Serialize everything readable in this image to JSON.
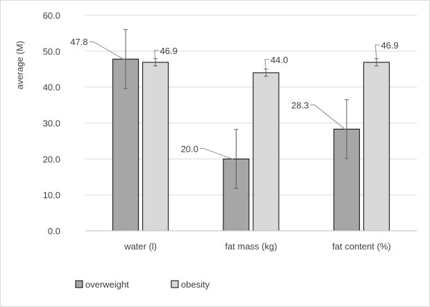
{
  "chart_data": {
    "type": "bar",
    "title": "",
    "xlabel": "",
    "ylabel": "average  (M)",
    "ylim": [
      0,
      60
    ],
    "yticks": [
      "0.0",
      "10.0",
      "20.0",
      "30.0",
      "40.0",
      "50.0",
      "60.0"
    ],
    "categories": [
      "water (l)",
      "fat mass (kg)",
      "fat content (%)"
    ],
    "series": [
      {
        "name": "overweight",
        "values": [
          47.8,
          20.0,
          28.3
        ],
        "labels": [
          "47.8",
          "20.0",
          "28.3"
        ],
        "error": [
          8.2,
          8.2,
          8.2
        ],
        "color": "#a6a6a6"
      },
      {
        "name": "obesity",
        "values": [
          46.9,
          44.0,
          46.9
        ],
        "labels": [
          "46.9",
          "44.0",
          "46.9"
        ],
        "error": [
          1.0,
          1.0,
          1.0
        ],
        "color": "#d9d9d9"
      }
    ],
    "grid": true,
    "legend": "bottom-left",
    "colors": {
      "gridline": "#d9d9d9",
      "axis": "#bfbfbf",
      "bar_border": "#000000",
      "text": "#404040"
    }
  }
}
